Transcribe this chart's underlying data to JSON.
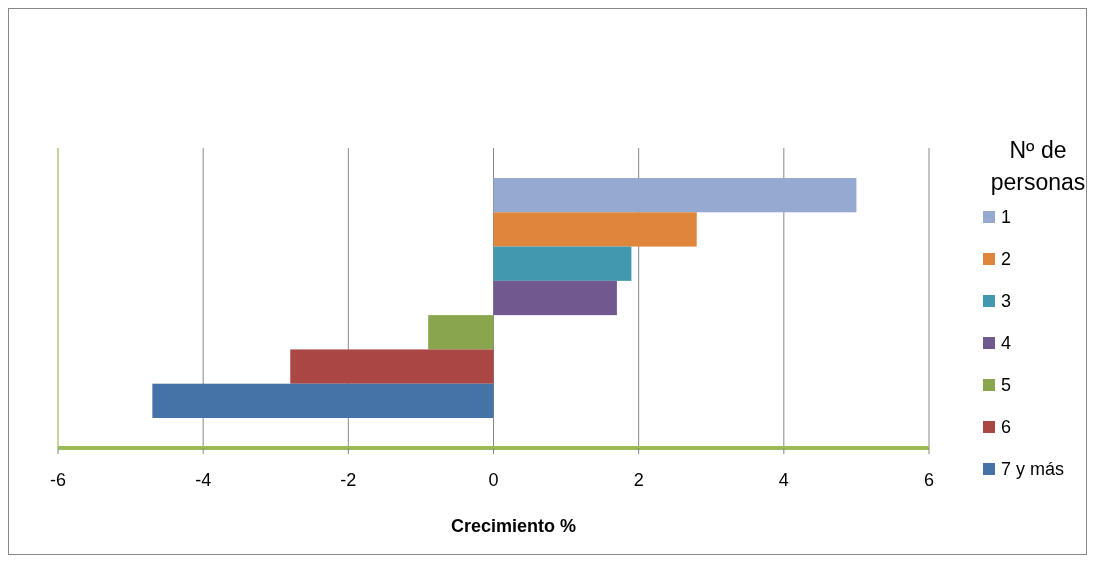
{
  "chart_data": {
    "type": "bar",
    "orientation": "horizontal",
    "xlabel": "Crecimiento %",
    "legend_title": "Nº de personas",
    "categories": [
      null
    ],
    "series": [
      {
        "name": "1",
        "color": "#95a9d1",
        "values": [
          5.0
        ]
      },
      {
        "name": "2",
        "color": "#e0853c",
        "values": [
          2.8
        ]
      },
      {
        "name": "3",
        "color": "#4198af",
        "values": [
          1.9
        ]
      },
      {
        "name": "4",
        "color": "#71588f",
        "values": [
          1.7
        ]
      },
      {
        "name": "5",
        "color": "#89a54e",
        "values": [
          -0.9
        ]
      },
      {
        "name": "6",
        "color": "#aa4644",
        "values": [
          -2.8
        ]
      },
      {
        "name": "7 y más",
        "color": "#4572a7",
        "values": [
          -4.7
        ]
      }
    ],
    "xlim": [
      -6,
      6
    ],
    "xticks": [
      -6,
      -4,
      -2,
      0,
      2,
      4,
      6
    ],
    "grid": "x",
    "legend": "right"
  }
}
